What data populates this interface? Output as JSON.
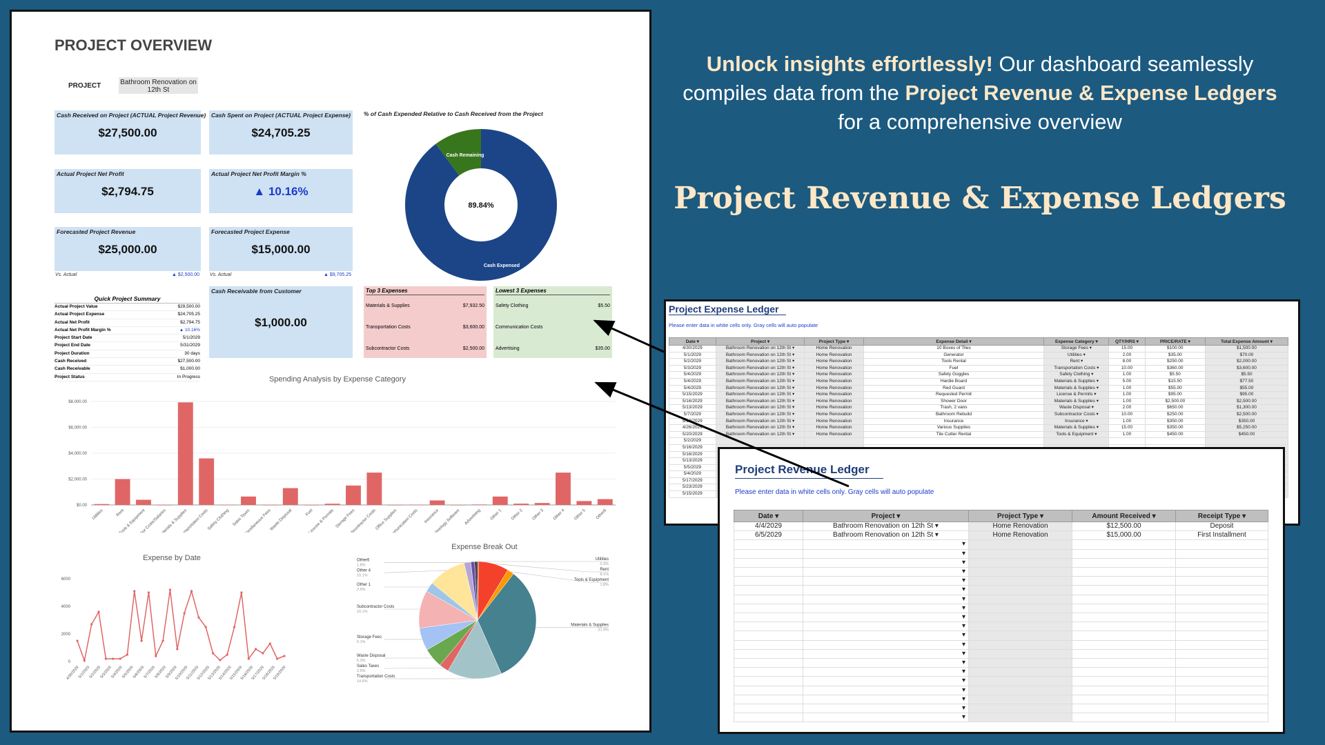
{
  "headline": {
    "line1_bold": "Unlock insights effortlessly!",
    "line1_rest": " Our dashboard seamlessly",
    "line2_pre": "compiles data from  the ",
    "line2_bold": "Project Revenue & Expense Ledgers",
    "line3": "for a comprehensive overview"
  },
  "big_title": "Project Revenue & Expense Ledgers",
  "dashboard": {
    "title": "PROJECT OVERVIEW",
    "project_label": "PROJECT",
    "project_value": "Bathroom Renovation on 12th St",
    "kpis": {
      "cash_received": {
        "label": "Cash Received on Project (ACTUAL Project Revenue)",
        "value": "$27,500.00"
      },
      "cash_spent": {
        "label": "Cash Spent on Project (ACTUAL Project Expense)",
        "value": "$24,705.25"
      },
      "net_profit": {
        "label": "Actual Project Net Profit",
        "value": "$2,794.75"
      },
      "net_margin": {
        "label": "Actual Project Net Profit Margin %",
        "value": "▲ 10.16%"
      },
      "fc_revenue": {
        "label": "Forecasted Project Revenue",
        "value": "$25,000.00",
        "vs_label": "Vs. Actual",
        "vs_value": "▲ $2,500.00"
      },
      "fc_expense": {
        "label": "Forecasted Project Expense",
        "value": "$15,000.00",
        "vs_label": "Vs. Actual",
        "vs_value": "▲ $9,705.25"
      },
      "receivable": {
        "label": "Cash Receivable from Customer",
        "value": "$1,000.00"
      }
    },
    "donut": {
      "title": "% of Cash Expended Relative to Cash Received from the Project",
      "center": "89.84%",
      "label_remaining": "Cash Remaining",
      "label_expensed": "Cash Expensed"
    },
    "quick_summary": {
      "title": "Quick Project Summary",
      "rows": [
        [
          "Actual Project Value",
          "$29,500.00"
        ],
        [
          "Actual Project Expense",
          "$24,705.25"
        ],
        [
          "Actual Net Profit",
          "$2,794.75"
        ],
        [
          "Actual Net Profit Margin %",
          "▲ 10.16%"
        ],
        [
          "Project Start Date",
          "5/1/2029"
        ],
        [
          "Project End Date",
          "5/31/2029"
        ],
        [
          "Project Duration",
          "30 days"
        ],
        [
          "Cash Received",
          "$27,500.00"
        ],
        [
          "Cash Receivable",
          "$1,000.00"
        ],
        [
          "Project Status",
          "In Progress"
        ]
      ]
    },
    "top3": {
      "title": "Top 3 Expenses",
      "rows": [
        [
          "Materials & Supplies",
          "$7,932.50"
        ],
        [
          "Transportation Costs",
          "$3,600.00"
        ],
        [
          "Subcontractor Costs",
          "$2,500.00"
        ]
      ]
    },
    "lowest3": {
      "title": "Lowest 3 Expenses",
      "rows": [
        [
          "Safety Clothing",
          "$5.50"
        ],
        [
          "Communication Costs",
          "$"
        ],
        [
          "Advertising",
          "$35.00"
        ]
      ]
    }
  },
  "chart_data": [
    {
      "type": "bar",
      "title": "Spending Analysis by Expense Category",
      "categories": [
        "Utilities",
        "Rent",
        "Tools & Equipment",
        "Labor Costs/Salaries",
        "Materials & Supplies",
        "Transportation Costs",
        "Safety Clothing",
        "Sales Taxes",
        "Miscellaneous Fees",
        "Waste Disposal",
        "Fuel",
        "License & Permits",
        "Storage Fees",
        "Subcontractor Costs",
        "Office Supplies",
        "Communication Costs",
        "Insurance",
        "Technology Software",
        "Advertising",
        "Other 1",
        "Other 2",
        "Other 3",
        "Other 4",
        "Other 5",
        "Other6"
      ],
      "values": [
        70,
        2000,
        400,
        0,
        7932.5,
        3600,
        5.5,
        650,
        0,
        1300,
        0,
        95,
        1500,
        2500,
        0,
        20,
        350,
        0,
        35,
        650,
        100,
        150,
        2500,
        300,
        450
      ],
      "yticks": [
        "$0.00",
        "$2,000.00",
        "$4,000.00",
        "$6,000.00",
        "$8,000.00"
      ],
      "ylim": [
        0,
        8000
      ],
      "color": "#e06666"
    },
    {
      "type": "line",
      "title": "Expense by Date",
      "x": [
        "4/30/2029",
        "5/1/2029",
        "5/2/2029",
        "5/3/2029",
        "5/4/2029",
        "5/5/2029",
        "5/6/2029",
        "5/7/2029",
        "5/8/2029",
        "5/9/2029",
        "5/10/2029",
        "5/11/2029",
        "5/12/2029",
        "5/13/2029",
        "5/14/2029",
        "5/15/2029",
        "5/16/2029",
        "5/17/2029",
        "5/18/2029",
        "5/19/2029",
        "5/20/2029",
        "5/21/2029",
        "5/22/2029",
        "5/23/2029",
        "5/24/2029",
        "5/25/2029",
        "5/26/2029",
        "5/27/2029",
        "5/28/2029",
        "5/29/2029"
      ],
      "xticks": [
        "4/30/2029",
        "5/1/2029",
        "5/2/2029",
        "5/3/2029",
        "5/4/2029",
        "5/5/2029",
        "5/6/2029",
        "5/7/2029",
        "5/8/2029",
        "5/9/2029",
        "5/10/2029",
        "5/11/2029",
        "5/12/2029",
        "5/13/2029",
        "5/14/2029",
        "5/15/2029",
        "5/16/2029",
        "5/17/2029",
        "5/18/2029",
        "5/19/2029"
      ],
      "values": [
        1500,
        70,
        2700,
        3600,
        200,
        200,
        200,
        500,
        5100,
        1500,
        5000,
        400,
        1500,
        5200,
        900,
        3500,
        5100,
        3200,
        2500,
        600,
        100,
        500,
        2500,
        5000,
        200,
        900,
        600,
        1300,
        200,
        400
      ],
      "yticks": [
        "0",
        "2000",
        "4000",
        "6000"
      ],
      "ylim": [
        0,
        6000
      ],
      "color": "#e06666"
    },
    {
      "type": "pie",
      "title": "Expense Break Out",
      "slices": [
        {
          "label": "Utilities",
          "pct": "0.3%",
          "value": 0.3,
          "color": "#cc0000"
        },
        {
          "label": "Rent",
          "pct": "8.1%",
          "value": 8.1,
          "color": "#f4412b"
        },
        {
          "label": "Tools & Equipment",
          "pct": "1.8%",
          "value": 1.8,
          "color": "#ff9900"
        },
        {
          "label": "Materials & Supplies",
          "pct": "31.9%",
          "value": 31.9,
          "color": "#45818e"
        },
        {
          "label": "Transportation Costs",
          "pct": "14.6%",
          "value": 14.6,
          "color": "#a2c4c9"
        },
        {
          "label": "Sales Taxes",
          "pct": "2.6%",
          "value": 2.6,
          "color": "#e06666"
        },
        {
          "label": "Waste Disposal",
          "pct": "5.3%",
          "value": 5.3,
          "color": "#6aa84f"
        },
        {
          "label": "Storage Fees",
          "pct": "6.1%",
          "value": 6.1,
          "color": "#a4c2f4"
        },
        {
          "label": "Subcontractor Costs",
          "pct": "10.1%",
          "value": 10.1,
          "color": "#f4b2b2"
        },
        {
          "label": "Other 1",
          "pct": "2.6%",
          "value": 2.6,
          "color": "#9fc5e8"
        },
        {
          "label": "Other 4",
          "pct": "10.1%",
          "value": 10.1,
          "color": "#ffe599"
        },
        {
          "label": "Other6",
          "pct": "1.8%",
          "value": 1.8,
          "color": "#b4a7d6"
        },
        {
          "label": "",
          "pct": "",
          "value": 1.0,
          "color": "#674ea7"
        },
        {
          "label": "",
          "pct": "",
          "value": 0.8,
          "color": "#434343"
        }
      ]
    }
  ],
  "expense_ledger": {
    "title": "Project Expense Ledger",
    "note": "Please enter data in white cells only. Gray cells will auto populate",
    "headers": [
      "Date",
      "Project",
      "Project Type",
      "Expense Detail",
      "Expense Category",
      "QTY/HRS",
      "PRICE/RATE",
      "Total Expense Amount"
    ],
    "rows": [
      [
        "4/30/2029",
        "Bathroom Renovation on 12th St",
        "Home Renovation",
        "10 Boxes of Tiles",
        "Storage Fees",
        "15.00",
        "$100.00",
        "$1,500.00"
      ],
      [
        "5/1/2029",
        "Bathroom Renovation on 12th St",
        "Home Renovation",
        "Generator",
        "Utilities",
        "2.00",
        "$35.00",
        "$70.00"
      ],
      [
        "5/2/2029",
        "Bathroom Renovation on 12th St",
        "Home Renovation",
        "Tools Rental",
        "Rent",
        "8.00",
        "$250.00",
        "$2,000.00"
      ],
      [
        "5/3/2029",
        "Bathroom Renovation on 12th St",
        "Home Renovation",
        "Fuel",
        "Transportation Costs",
        "10.00",
        "$360.00",
        "$3,600.00"
      ],
      [
        "5/4/2029",
        "Bathroom Renovation on 12th St",
        "Home Renovation",
        "Safety Goggles",
        "Safety Clothing",
        "1.00",
        "$5.50",
        "$5.50"
      ],
      [
        "5/4/2029",
        "Bathroom Renovation on 12th St",
        "Home Renovation",
        "Hardie Board",
        "Materials & Supplies",
        "5.00",
        "$15.50",
        "$77.50"
      ],
      [
        "5/4/2029",
        "Bathroom Renovation on 12th St",
        "Home Renovation",
        "Red Guard",
        "Materials & Supplies",
        "1.00",
        "$55.00",
        "$55.00"
      ],
      [
        "5/15/2029",
        "Bathroom Renovation on 12th St",
        "Home Renovation",
        "Requested Permit",
        "License & Permits",
        "1.00",
        "$95.00",
        "$95.00"
      ],
      [
        "5/16/2029",
        "Bathroom Renovation on 12th St",
        "Home Renovation",
        "Shower Door",
        "Materials & Supplies",
        "1.00",
        "$2,500.00",
        "$2,500.00"
      ],
      [
        "5/13/2029",
        "Bathroom Renovation on 12th St",
        "Home Renovation",
        "Trash, 2 vans",
        "Waste Disposal",
        "2.00",
        "$650.00",
        "$1,300.00"
      ],
      [
        "5/7/2029",
        "Bathroom Renovation on 12th St",
        "Home Renovation",
        "Bathroom Rebuild",
        "Subcontractor Costs",
        "10.00",
        "$250.00",
        "$2,500.00"
      ],
      [
        "5/14/2029",
        "Bathroom Renovation on 12th St",
        "Home Renovation",
        "Insurance",
        "Insurance",
        "1.00",
        "$350.00",
        "$350.00"
      ],
      [
        "4/26/2029",
        "Bathroom Renovation on 12th St",
        "Home Renovation",
        "Various Supplies",
        "Materials & Supplies",
        "15.00",
        "$350.00",
        "$5,250.00"
      ],
      [
        "5/20/2029",
        "Bathroom Renovation on 12th St",
        "Home Renovation",
        "Tile Cutter Rental",
        "Tools & Equipment",
        "1.00",
        "$450.00",
        "$450.00"
      ],
      [
        "5/2/2029",
        "",
        "",
        "",
        "",
        "",
        "",
        ""
      ],
      [
        "5/16/2029",
        "",
        "",
        "",
        "",
        "",
        "",
        ""
      ],
      [
        "5/16/2029",
        "",
        "",
        "",
        "",
        "",
        "",
        ""
      ],
      [
        "5/13/2029",
        "",
        "",
        "",
        "",
        "",
        "",
        ""
      ],
      [
        "5/5/2029",
        "",
        "",
        "",
        "",
        "",
        "",
        ""
      ],
      [
        "5/4/2029",
        "",
        "",
        "",
        "",
        "",
        "",
        ""
      ],
      [
        "5/17/2029",
        "",
        "",
        "",
        "",
        "",
        "",
        ""
      ],
      [
        "5/23/2029",
        "",
        "",
        "",
        "",
        "",
        "",
        ""
      ],
      [
        "5/15/2029",
        "",
        "",
        "",
        "",
        "",
        "",
        ""
      ]
    ]
  },
  "revenue_ledger": {
    "title": "Project Revenue Ledger",
    "note": "Please enter data in white cells only. Gray cells will auto populate",
    "headers": [
      "Date",
      "Project",
      "Project Type",
      "Amount Received",
      "Receipt Type"
    ],
    "rows": [
      [
        "4/4/2029",
        "Bathroom Renovation on 12th St",
        "Home Renovation",
        "$12,500.00",
        "Deposit"
      ],
      [
        "6/5/2029",
        "Bathroom Renovation on 12th St",
        "Home Renovation",
        "$15,000.00",
        "First Installment"
      ]
    ],
    "empty_rows": 20
  }
}
